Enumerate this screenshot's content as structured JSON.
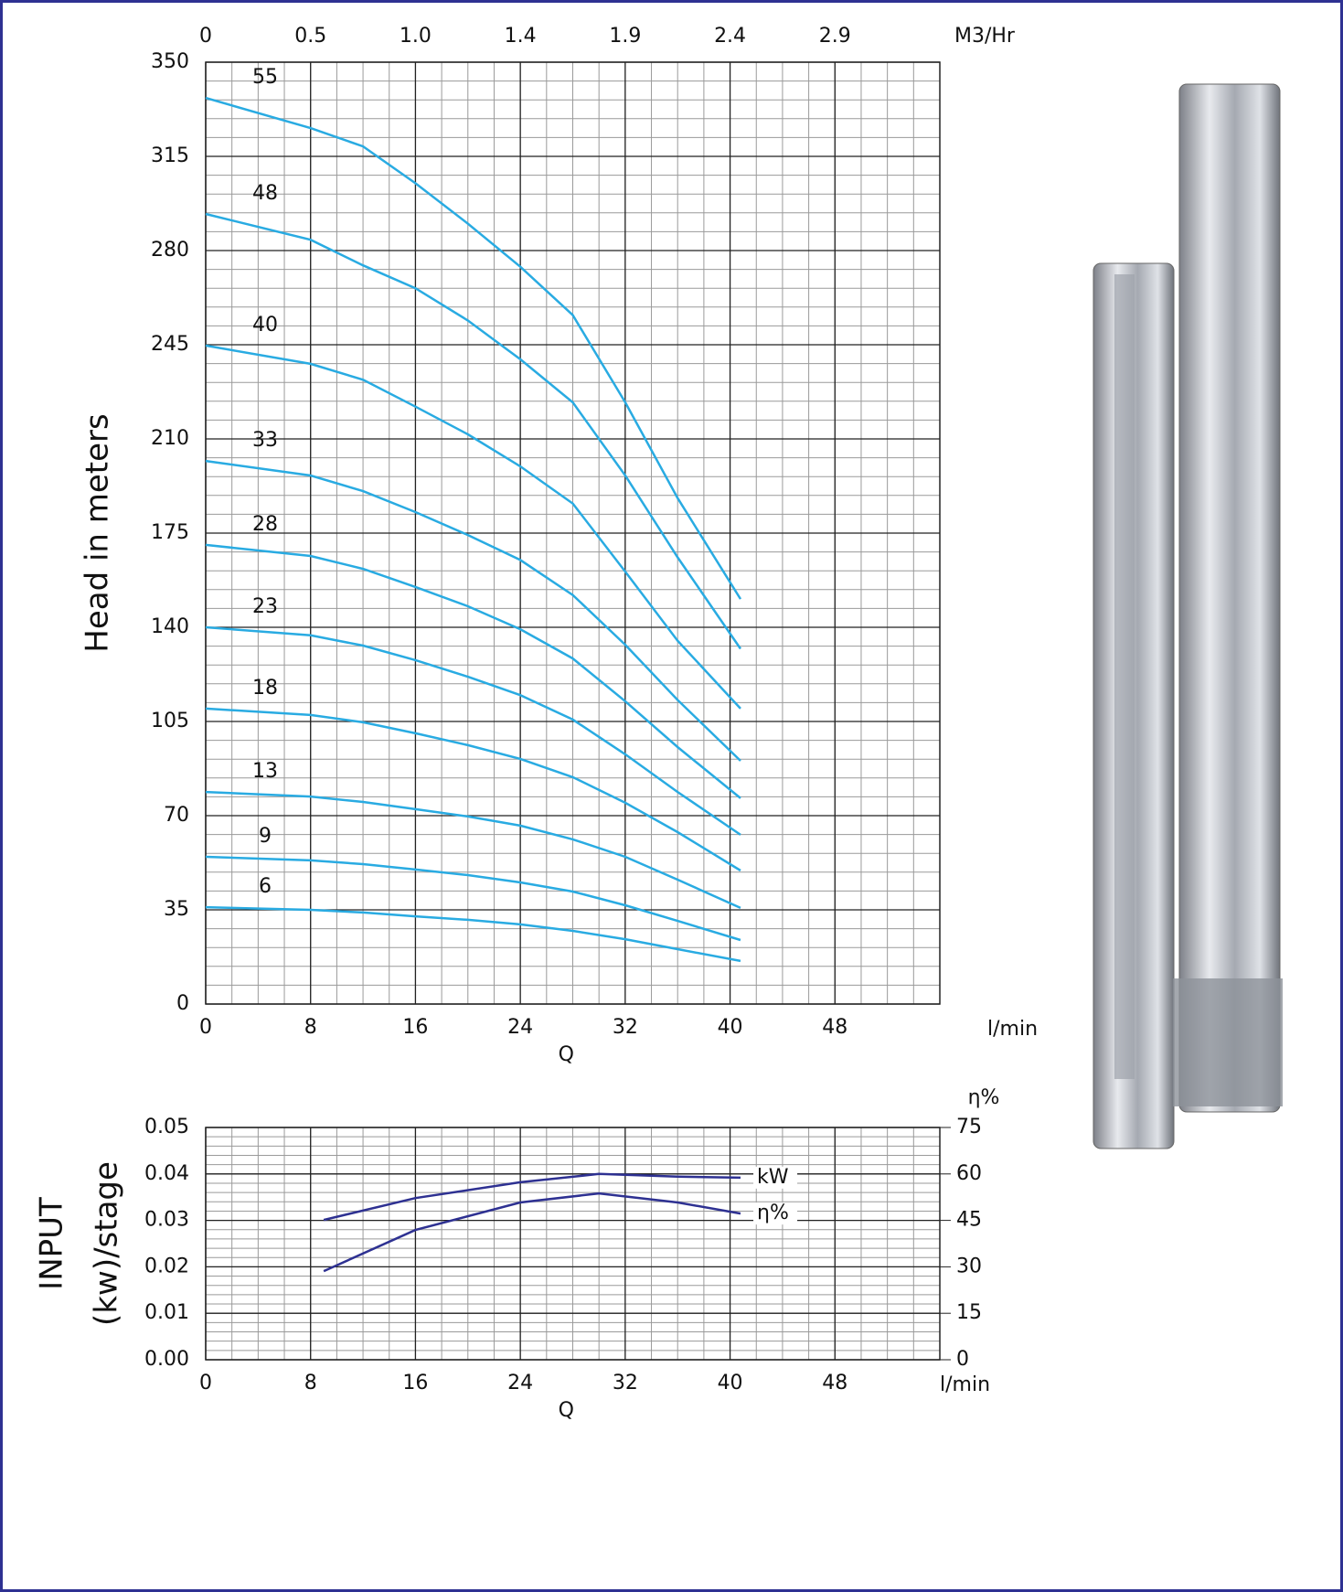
{
  "chart_data": [
    {
      "type": "line",
      "y_label": "Head in meters",
      "x_label": "Q",
      "x_unit": "l/min",
      "top_axis": {
        "label": "M3/Hr",
        "ticks": [
          "0",
          "0.5",
          "1.0",
          "1.4",
          "1.9",
          "2.4",
          "2.9"
        ]
      },
      "x": [
        0,
        8,
        12,
        16,
        20,
        24,
        28,
        32,
        36,
        40.8
      ],
      "series": [
        {
          "name": "55",
          "color": "#29abe2",
          "values": [
            336.7,
            325.5,
            318.7,
            305,
            290,
            274,
            256,
            223.6,
            188,
            150.5
          ]
        },
        {
          "name": "48",
          "color": "#29abe2",
          "values": [
            293.6,
            284,
            274.5,
            266,
            254,
            239.6,
            223.6,
            196.4,
            166,
            132
          ]
        },
        {
          "name": "40",
          "color": "#29abe2",
          "values": [
            244.7,
            237.9,
            232,
            222,
            211.7,
            199.8,
            186,
            160.7,
            135,
            109.8
          ]
        },
        {
          "name": "33",
          "color": "#29abe2",
          "values": [
            201.8,
            196.4,
            190.6,
            182.8,
            174.3,
            165,
            152,
            133.5,
            113,
            90.4
          ]
        },
        {
          "name": "28",
          "color": "#29abe2",
          "values": [
            170.6,
            166.5,
            161.7,
            155,
            147.8,
            139.3,
            128.4,
            112.5,
            95.5,
            76.5
          ]
        },
        {
          "name": "23",
          "color": "#29abe2",
          "values": [
            140,
            137,
            133.2,
            127.8,
            121.6,
            114.8,
            105.7,
            92.8,
            78.8,
            62.9
          ]
        },
        {
          "name": "18",
          "color": "#29abe2",
          "values": [
            109.8,
            107.4,
            104.7,
            100.6,
            96.2,
            91.1,
            84.3,
            74.8,
            63.9,
            49.6
          ]
        },
        {
          "name": "13",
          "color": "#29abe2",
          "values": [
            78.8,
            77.1,
            75.1,
            72.4,
            69.7,
            66.3,
            61.2,
            54.7,
            46.2,
            35.7
          ]
        },
        {
          "name": "9",
          "color": "#29abe2",
          "values": [
            54.7,
            53.4,
            52,
            50,
            47.9,
            45.2,
            41.8,
            36.7,
            30.9,
            23.8
          ]
        },
        {
          "name": "6",
          "color": "#29abe2",
          "values": [
            36,
            35,
            34,
            32.6,
            31.3,
            29.6,
            27.2,
            24.1,
            20.4,
            16
          ]
        }
      ],
      "xlim": [
        0,
        56
      ],
      "xticks": [
        0,
        8,
        16,
        24,
        32,
        40,
        48
      ],
      "ylim": [
        0,
        350
      ],
      "yticks": [
        0,
        35,
        70,
        105,
        140,
        175,
        210,
        245,
        280,
        315,
        350
      ],
      "grid": true,
      "minor_grid": {
        "x": 2,
        "y": 7
      }
    },
    {
      "type": "line",
      "y_label": [
        "INPUT",
        "(kw)/stage"
      ],
      "y2_label": "η%",
      "x_label": "Q",
      "x_unit": "l/min",
      "x": [
        9,
        16,
        24,
        30,
        36,
        40.8
      ],
      "series": [
        {
          "name": "kW",
          "color": "#2e3192",
          "values": [
            0.0301,
            0.0348,
            0.0382,
            0.04,
            0.0394,
            0.0392
          ]
        },
        {
          "name": "η%",
          "color": "#2e3192",
          "axis": "y2",
          "values": [
            28.6,
            41.9,
            50.8,
            53.7,
            50.8,
            47.2
          ]
        }
      ],
      "xlim": [
        0,
        56
      ],
      "xticks": [
        0,
        8,
        16,
        24,
        32,
        40,
        48
      ],
      "ylim": [
        0,
        0.05
      ],
      "yticks": [
        {
          "value": 0,
          "label": "0.00"
        },
        {
          "value": 0.01,
          "label": "0.01"
        },
        {
          "value": 0.02,
          "label": "0.02"
        },
        {
          "value": 0.03,
          "label": "0.03"
        },
        {
          "value": 0.04,
          "label": "0.04"
        },
        {
          "value": 0.05,
          "label": "0.05"
        }
      ],
      "y2lim": [
        0,
        75
      ],
      "y2ticks": [
        0,
        15,
        30,
        45,
        60,
        75
      ],
      "grid": true,
      "minor_grid": {
        "x": 2,
        "y": 0.002
      }
    }
  ]
}
